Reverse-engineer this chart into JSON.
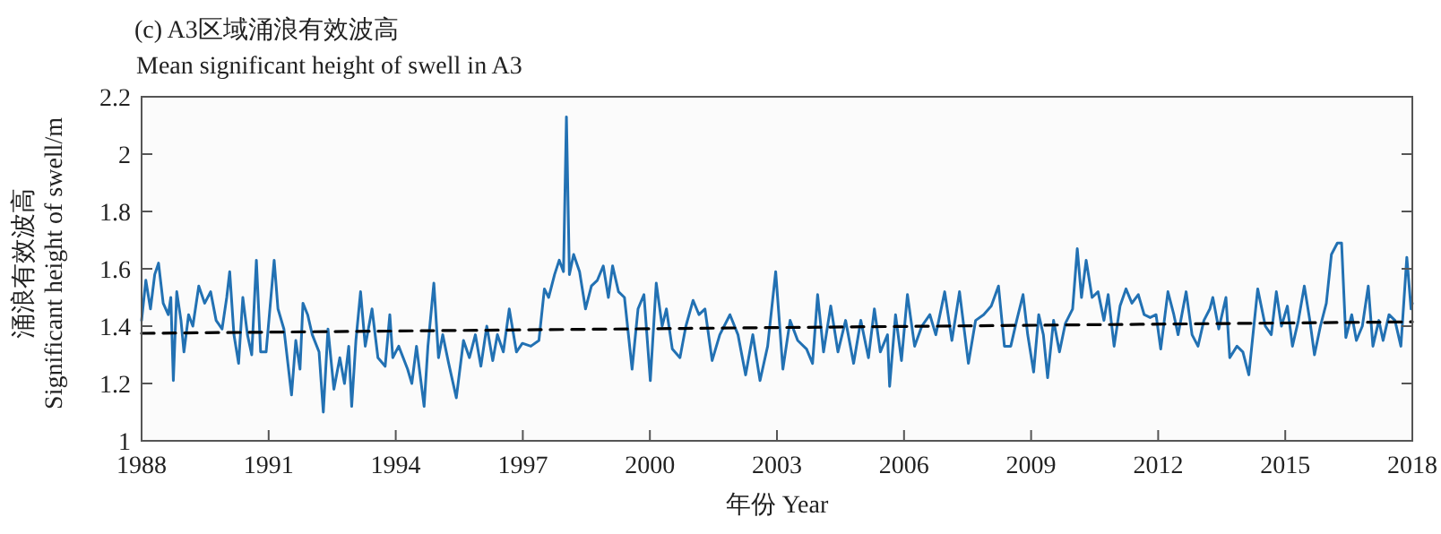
{
  "chart_data": {
    "type": "line",
    "title": "(c) A3区域涌浪有效波高",
    "subtitle": "Mean significant height of swell in A3",
    "xlabel": "年份 Year",
    "ylabel": "涌浪有效波高\nSignificant height of swell/m",
    "xlim": [
      1988,
      2018
    ],
    "xticks": [
      1988,
      1991,
      1994,
      1997,
      2000,
      2003,
      2006,
      2009,
      2012,
      2015,
      2018
    ],
    "ylim": [
      1,
      2.2
    ],
    "yticks": [
      1,
      1.2,
      1.4,
      1.6,
      1.8,
      2,
      2.2
    ],
    "grid": false,
    "series": [
      {
        "type": "line",
        "color": "#2271b3",
        "line_style": "solid",
        "x": [
          1988.0,
          1988.1,
          1988.21,
          1988.31,
          1988.4,
          1988.51,
          1988.63,
          1988.69,
          1988.75,
          1988.83,
          1988.93,
          1989.0,
          1989.11,
          1989.21,
          1989.35,
          1989.49,
          1989.63,
          1989.76,
          1989.9,
          1990.01,
          1990.08,
          1990.18,
          1990.29,
          1990.39,
          1990.5,
          1990.6,
          1990.71,
          1990.81,
          1990.94,
          1991.13,
          1991.22,
          1991.36,
          1991.54,
          1991.64,
          1991.74,
          1991.81,
          1991.92,
          1992.03,
          1992.19,
          1992.29,
          1992.4,
          1992.54,
          1992.68,
          1992.79,
          1992.89,
          1992.96,
          1993.06,
          1993.17,
          1993.28,
          1993.44,
          1993.58,
          1993.75,
          1993.86,
          1993.93,
          1994.07,
          1994.28,
          1994.38,
          1994.49,
          1994.67,
          1994.76,
          1994.9,
          1995.01,
          1995.11,
          1995.25,
          1995.43,
          1995.6,
          1995.74,
          1995.88,
          1996.01,
          1996.15,
          1996.29,
          1996.4,
          1996.54,
          1996.68,
          1996.85,
          1996.99,
          1997.19,
          1997.38,
          1997.51,
          1997.61,
          1997.75,
          1997.86,
          1997.96,
          1998.03,
          1998.1,
          1998.2,
          1998.34,
          1998.48,
          1998.62,
          1998.76,
          1998.9,
          1999.02,
          1999.12,
          1999.26,
          1999.4,
          1999.58,
          1999.72,
          1999.86,
          2000.01,
          2000.15,
          2000.29,
          2000.39,
          2000.53,
          2000.71,
          2000.85,
          2001.02,
          2001.16,
          2001.3,
          2001.47,
          2001.65,
          2001.89,
          2002.08,
          2002.26,
          2002.43,
          2002.6,
          2002.78,
          2002.97,
          2003.14,
          2003.31,
          2003.49,
          2003.7,
          2003.84,
          2003.96,
          2004.1,
          2004.27,
          2004.44,
          2004.62,
          2004.81,
          2004.98,
          2005.16,
          2005.3,
          2005.44,
          2005.61,
          2005.66,
          2005.8,
          2005.94,
          2006.08,
          2006.25,
          2006.42,
          2006.61,
          2006.75,
          2006.96,
          2007.13,
          2007.31,
          2007.52,
          2007.69,
          2007.88,
          2008.06,
          2008.23,
          2008.37,
          2008.52,
          2008.66,
          2008.81,
          2008.92,
          2009.06,
          2009.18,
          2009.29,
          2009.39,
          2009.53,
          2009.67,
          2009.81,
          2009.98,
          2010.09,
          2010.19,
          2010.3,
          2010.44,
          2010.58,
          2010.72,
          2010.82,
          2010.96,
          2011.1,
          2011.24,
          2011.38,
          2011.53,
          2011.67,
          2011.81,
          2011.95,
          2012.06,
          2012.23,
          2012.37,
          2012.47,
          2012.66,
          2012.8,
          2012.94,
          2013.08,
          2013.22,
          2013.29,
          2013.43,
          2013.6,
          2013.69,
          2013.86,
          2014.0,
          2014.14,
          2014.35,
          2014.53,
          2014.67,
          2014.79,
          2014.91,
          2015.05,
          2015.17,
          2015.31,
          2015.45,
          2015.58,
          2015.69,
          2015.83,
          2015.97,
          2016.09,
          2016.23,
          2016.33,
          2016.43,
          2016.57,
          2016.68,
          2016.82,
          2016.96,
          2017.07,
          2017.21,
          2017.31,
          2017.45,
          2017.59,
          2017.73,
          2017.87,
          2017.97,
          2018.0
        ],
        "values": [
          1.42,
          1.56,
          1.46,
          1.58,
          1.62,
          1.48,
          1.44,
          1.5,
          1.21,
          1.52,
          1.42,
          1.31,
          1.44,
          1.4,
          1.54,
          1.48,
          1.52,
          1.42,
          1.39,
          1.5,
          1.59,
          1.37,
          1.27,
          1.5,
          1.37,
          1.3,
          1.63,
          1.31,
          1.31,
          1.63,
          1.46,
          1.39,
          1.16,
          1.35,
          1.25,
          1.48,
          1.44,
          1.37,
          1.31,
          1.1,
          1.39,
          1.18,
          1.29,
          1.2,
          1.33,
          1.12,
          1.35,
          1.52,
          1.33,
          1.46,
          1.29,
          1.26,
          1.44,
          1.29,
          1.33,
          1.25,
          1.2,
          1.33,
          1.12,
          1.33,
          1.55,
          1.29,
          1.37,
          1.27,
          1.15,
          1.35,
          1.29,
          1.37,
          1.26,
          1.4,
          1.28,
          1.37,
          1.31,
          1.46,
          1.31,
          1.34,
          1.33,
          1.35,
          1.53,
          1.5,
          1.58,
          1.63,
          1.59,
          2.13,
          1.58,
          1.65,
          1.59,
          1.46,
          1.54,
          1.56,
          1.61,
          1.5,
          1.61,
          1.52,
          1.5,
          1.25,
          1.46,
          1.51,
          1.21,
          1.55,
          1.4,
          1.46,
          1.32,
          1.29,
          1.4,
          1.49,
          1.44,
          1.46,
          1.28,
          1.37,
          1.44,
          1.37,
          1.23,
          1.37,
          1.21,
          1.33,
          1.59,
          1.25,
          1.42,
          1.35,
          1.32,
          1.27,
          1.51,
          1.31,
          1.47,
          1.31,
          1.42,
          1.27,
          1.42,
          1.29,
          1.46,
          1.31,
          1.37,
          1.19,
          1.44,
          1.28,
          1.51,
          1.33,
          1.4,
          1.44,
          1.37,
          1.52,
          1.35,
          1.52,
          1.27,
          1.42,
          1.44,
          1.47,
          1.54,
          1.33,
          1.33,
          1.42,
          1.51,
          1.37,
          1.24,
          1.44,
          1.37,
          1.22,
          1.42,
          1.31,
          1.41,
          1.46,
          1.67,
          1.5,
          1.63,
          1.5,
          1.52,
          1.42,
          1.51,
          1.33,
          1.47,
          1.53,
          1.48,
          1.51,
          1.44,
          1.43,
          1.44,
          1.32,
          1.52,
          1.44,
          1.37,
          1.52,
          1.37,
          1.33,
          1.42,
          1.46,
          1.5,
          1.39,
          1.5,
          1.29,
          1.33,
          1.31,
          1.23,
          1.53,
          1.4,
          1.37,
          1.52,
          1.4,
          1.47,
          1.33,
          1.42,
          1.54,
          1.42,
          1.3,
          1.4,
          1.48,
          1.65,
          1.69,
          1.69,
          1.36,
          1.44,
          1.35,
          1.4,
          1.54,
          1.33,
          1.42,
          1.35,
          1.44,
          1.42,
          1.33,
          1.64,
          1.46,
          1.48
        ]
      },
      {
        "type": "line",
        "color": "#000000",
        "line_style": "dashed",
        "x": [
          1988,
          2018
        ],
        "values": [
          1.375,
          1.415
        ]
      }
    ]
  }
}
